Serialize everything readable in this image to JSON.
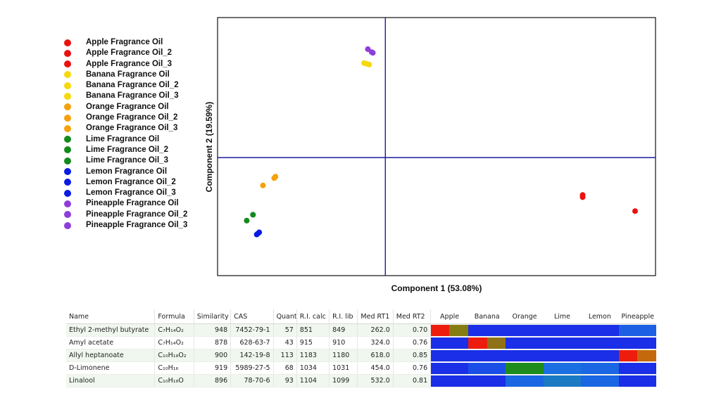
{
  "chart_data": {
    "type": "scatter",
    "xlabel": "Component 1 (53.08%)",
    "ylabel": "Component 2 (19.59%)",
    "xlim": [
      -0.59,
      1.0
    ],
    "ylim": [
      -0.7,
      0.85
    ],
    "zero_lines": true,
    "legend_position": "left",
    "series": [
      {
        "name": "Apple Fragrance Oil",
        "color": "#e8130f",
        "points": [
          [
            0.79,
            -0.255
          ]
        ]
      },
      {
        "name": "Apple Fragrance Oil_2",
        "color": "#e8130f",
        "points": [
          [
            0.79,
            -0.27
          ]
        ]
      },
      {
        "name": "Apple Fragrance Oil_3",
        "color": "#e8130f",
        "points": [
          [
            1.0,
            -0.365
          ]
        ]
      },
      {
        "name": "Banana Fragrance Oil",
        "color": "#f6d90c",
        "points": [
          [
            -0.085,
            0.645
          ]
        ]
      },
      {
        "name": "Banana Fragrance Oil_2",
        "color": "#f6d90c",
        "points": [
          [
            -0.075,
            0.64
          ]
        ]
      },
      {
        "name": "Banana Fragrance Oil_3",
        "color": "#f6d90c",
        "points": [
          [
            -0.065,
            0.635
          ]
        ]
      },
      {
        "name": "Orange Fragrance Oil",
        "color": "#f4a10c",
        "points": [
          [
            -0.44,
            -0.13
          ]
        ]
      },
      {
        "name": "Orange Fragrance Oil_2",
        "color": "#f4a10c",
        "points": [
          [
            -0.445,
            -0.14
          ]
        ]
      },
      {
        "name": "Orange Fragrance Oil_3",
        "color": "#f4a10c",
        "points": [
          [
            -0.49,
            -0.19
          ]
        ]
      },
      {
        "name": "Lime Fragrance Oil",
        "color": "#148a1d",
        "points": [
          [
            -0.53,
            -0.39
          ]
        ]
      },
      {
        "name": "Lime Fragrance Oil_2",
        "color": "#148a1d",
        "points": [
          [
            -0.555,
            -0.43
          ]
        ]
      },
      {
        "name": "Lime Fragrance Oil_3",
        "color": "#148a1d",
        "points": [
          [
            -0.53,
            -0.39
          ]
        ]
      },
      {
        "name": "Lemon Fragrance Oil",
        "color": "#0a1be3",
        "points": [
          [
            -0.505,
            -0.51
          ]
        ]
      },
      {
        "name": "Lemon Fragrance Oil_2",
        "color": "#0a1be3",
        "points": [
          [
            -0.515,
            -0.525
          ]
        ]
      },
      {
        "name": "Lemon Fragrance Oil_3",
        "color": "#0a1be3",
        "points": [
          [
            -0.51,
            -0.518
          ]
        ]
      },
      {
        "name": "Pineapple Fragrance Oil",
        "color": "#8e3ddb",
        "points": [
          [
            -0.07,
            0.74
          ]
        ]
      },
      {
        "name": "Pineapple Fragrance Oil_2",
        "color": "#8e3ddb",
        "points": [
          [
            -0.05,
            0.715
          ]
        ]
      },
      {
        "name": "Pineapple Fragrance Oil_3",
        "color": "#8e3ddb",
        "points": [
          [
            -0.055,
            0.72
          ]
        ]
      }
    ]
  },
  "table": {
    "columns": [
      "Name",
      "Formula",
      "Similarity",
      "CAS",
      "Quant",
      "R.I. calc",
      "R.I. lib",
      "Med RT1",
      "Med RT2"
    ],
    "heat_columns": [
      "Apple",
      "Banana",
      "Orange",
      "Lime",
      "Lemon",
      "Pineapple"
    ],
    "rows": [
      {
        "name": "Ethyl 2-methyl butyrate",
        "formula": "C₇H₁₄O₂",
        "similarity": "948",
        "cas": "7452-79-1",
        "quant": "57",
        "ri_calc": "851",
        "ri_lib": "849",
        "rt1": "262.0",
        "rt2": "0.70",
        "heat": [
          [
            "#ee1c0d",
            "#857d12"
          ],
          [
            "#1b2ee8",
            "#1b2ee8"
          ],
          [
            "#1b2ee8",
            "#1b2ee8"
          ],
          [
            "#1b2ee8",
            "#1b2ee8"
          ],
          [
            "#1b2ee8",
            "#1b2ee8"
          ],
          [
            "#1c5fe4",
            "#1c5fe4"
          ]
        ]
      },
      {
        "name": "Amyl acetate",
        "formula": "C₇H₁₄O₂",
        "similarity": "878",
        "cas": "628-63-7",
        "quant": "43",
        "ri_calc": "915",
        "ri_lib": "910",
        "rt1": "324.0",
        "rt2": "0.76",
        "heat": [
          [
            "#1b2ee8",
            "#1b2ee8"
          ],
          [
            "#ee1c0d",
            "#8f7217"
          ],
          [
            "#1b2ee8",
            "#1b2ee8"
          ],
          [
            "#1b2ee8",
            "#1b2ee8"
          ],
          [
            "#1b2ee8",
            "#1b2ee8"
          ],
          [
            "#1b2ee8",
            "#1b2ee8"
          ]
        ]
      },
      {
        "name": "Allyl heptanoate",
        "formula": "C₁₀H₁₈O₂",
        "similarity": "900",
        "cas": "142-19-8",
        "quant": "113",
        "ri_calc": "1183",
        "ri_lib": "1180",
        "rt1": "618.0",
        "rt2": "0.85",
        "heat": [
          [
            "#1b2ee8",
            "#1b2ee8"
          ],
          [
            "#1b2ee8",
            "#1b2ee8"
          ],
          [
            "#1b2ee8",
            "#1b2ee8"
          ],
          [
            "#1b2ee8",
            "#1b2ee8"
          ],
          [
            "#1b2ee8",
            "#1b2ee8"
          ],
          [
            "#ee1c0d",
            "#c46a0c"
          ]
        ]
      },
      {
        "name": "D-Limonene",
        "formula": "C₁₀H₁₆",
        "similarity": "919",
        "cas": "5989-27-5",
        "quant": "68",
        "ri_calc": "1034",
        "ri_lib": "1031",
        "rt1": "454.0",
        "rt2": "0.76",
        "heat": [
          [
            "#1b2ee8",
            "#1b2ee8"
          ],
          [
            "#1a4ee6",
            "#1a4ee6"
          ],
          [
            "#1d8c1c",
            "#1d8c1c"
          ],
          [
            "#1a6fe2",
            "#1a6fe2"
          ],
          [
            "#1a66e3",
            "#1a66e3"
          ],
          [
            "#1b2ee8",
            "#1b2ee8"
          ]
        ]
      },
      {
        "name": "Linalool",
        "formula": "C₁₀H₁₈O",
        "similarity": "896",
        "cas": "78-70-6",
        "quant": "93",
        "ri_calc": "1104",
        "ri_lib": "1099",
        "rt1": "532.0",
        "rt2": "0.81",
        "heat": [
          [
            "#1b2ee8",
            "#1b2ee8"
          ],
          [
            "#1b2ee8",
            "#1b2ee8"
          ],
          [
            "#1a66e3",
            "#1a66e3"
          ],
          [
            "#1a7ac4",
            "#1a7ac4"
          ],
          [
            "#1a66e3",
            "#1a66e3"
          ],
          [
            "#1b2ee8",
            "#1b2ee8"
          ]
        ]
      }
    ]
  }
}
